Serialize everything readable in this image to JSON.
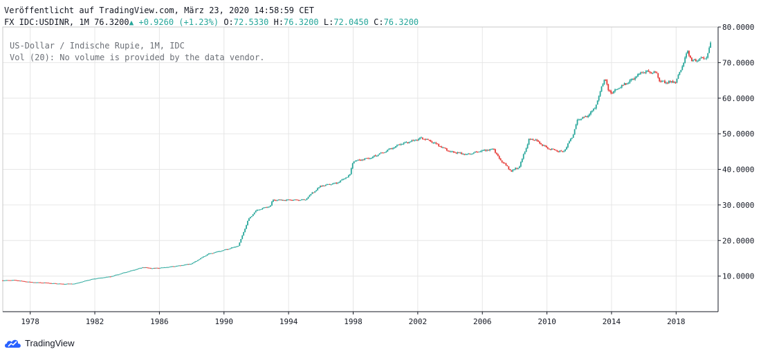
{
  "header": {
    "published": "Veröffentlicht auf TradingView.com, März 23, 2020 14:58:59 CET",
    "symbol": "FX_IDC:USDINR, 1M",
    "last": "76.3200",
    "change": "+0.9260 (+1.23%)",
    "o_label": "O:",
    "o_value": "72.5330",
    "h_label": "H:",
    "h_value": "76.3200",
    "l_label": "L:",
    "l_value": "72.0450",
    "c_label": "C:",
    "c_value": "76.3200"
  },
  "legend": {
    "line1": "US-Dollar / Indische Rupie, 1M, IDC",
    "line2": "Vol (20): No volume is provided by the data vendor."
  },
  "footer": {
    "brand": "TradingView",
    "logo_icon": "tradingview-cloud-logo-icon"
  },
  "colors": {
    "up": "#26a69a",
    "down": "#e53935",
    "grid": "#e6e6e6",
    "axis": "#131722",
    "brand": "#2962ff"
  },
  "chart_data": {
    "type": "candlestick",
    "title": "US-Dollar / Indische Rupie, 1M, IDC",
    "xlabel": "",
    "ylabel": "",
    "xlim": [
      1976.3,
      2020.6
    ],
    "ylim": [
      0,
      80
    ],
    "grid": true,
    "x_ticks": [
      "1978",
      "1982",
      "1986",
      "1990",
      "1994",
      "1998",
      "2002",
      "2006",
      "2010",
      "2014",
      "2018"
    ],
    "y_ticks": [
      "10.0000",
      "20.0000",
      "30.0000",
      "40.0000",
      "50.0000",
      "60.0000",
      "70.0000",
      "80.0000"
    ],
    "series": [
      {
        "x": [
          1976.3,
          1977.0,
          1978.0,
          1979.0,
          1980.0,
          1980.8,
          1981.5,
          1982.0,
          1983.0,
          1984.0,
          1985.0,
          1985.5,
          1986.0,
          1987.0,
          1988.0,
          1989.0,
          1990.0,
          1990.9,
          1991.1,
          1991.5,
          1992.0,
          1992.9,
          1993.0,
          1994.0,
          1995.0,
          1995.5,
          1996.0,
          1997.0,
          1997.8,
          1998.0,
          1999.0,
          2000.0,
          2001.0,
          2002.3,
          2003.0,
          2004.0,
          2005.0,
          2006.0,
          2006.7,
          2007.0,
          2007.8,
          2008.3,
          2008.9,
          2009.3,
          2010.0,
          2011.0,
          2011.6,
          2011.9,
          2012.5,
          2013.0,
          2013.6,
          2013.8,
          2014.0,
          2015.0,
          2016.0,
          2016.8,
          2017.0,
          2018.0,
          2018.7,
          2019.0,
          2019.9,
          2020.2
        ],
        "y": [
          8.8,
          8.9,
          8.3,
          8.1,
          7.8,
          7.9,
          8.8,
          9.3,
          9.9,
          11.2,
          12.5,
          12.2,
          12.3,
          12.8,
          13.5,
          16.2,
          17.3,
          18.5,
          21.0,
          25.8,
          28.5,
          29.8,
          31.4,
          31.4,
          31.4,
          33.5,
          35.3,
          36.2,
          38.5,
          42.3,
          43.2,
          45.0,
          47.2,
          48.8,
          47.5,
          45.0,
          44.2,
          45.2,
          45.8,
          43.2,
          39.5,
          40.8,
          48.5,
          48.2,
          46.0,
          44.8,
          49.5,
          54.0,
          55.0,
          57.5,
          66.0,
          62.0,
          61.5,
          64.5,
          67.5,
          67.0,
          64.5,
          64.6,
          73.0,
          70.5,
          71.5,
          76.3
        ]
      }
    ]
  }
}
